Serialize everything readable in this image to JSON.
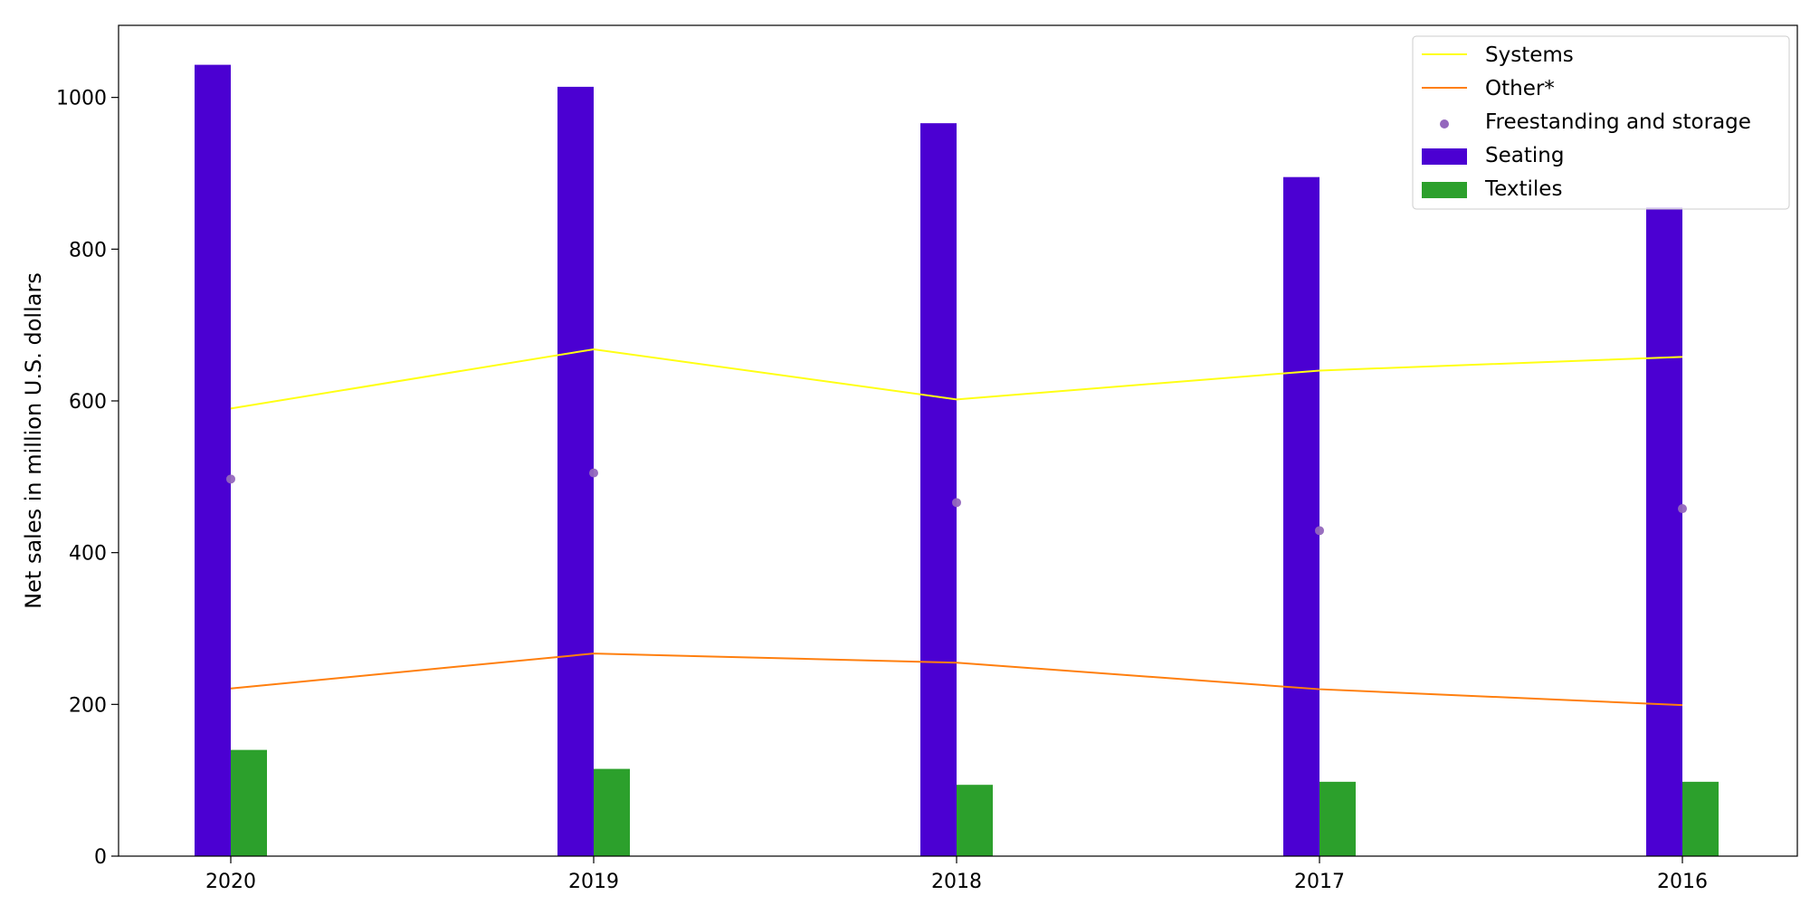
{
  "chart_data": {
    "type": "bar",
    "title": "",
    "xlabel": "",
    "ylabel": "Net sales in million U.S. dollars",
    "categories": [
      "2020",
      "2019",
      "2018",
      "2017",
      "2016"
    ],
    "ylim": [
      0,
      1095
    ],
    "yticks": [
      0,
      200,
      400,
      600,
      800,
      1000
    ],
    "grid": false,
    "legend_position": "top-right",
    "series": [
      {
        "name": "Systems",
        "kind": "line",
        "color": "#ffff14",
        "values": [
          590,
          668,
          602,
          640,
          658
        ]
      },
      {
        "name": "Other*",
        "kind": "line",
        "color": "#ff7f0e",
        "values": [
          221,
          267,
          255,
          220,
          199
        ]
      },
      {
        "name": "Freestanding and storage",
        "kind": "scatter",
        "color": "#9467bd",
        "values": [
          497,
          505,
          466,
          429,
          458
        ]
      },
      {
        "name": "Seating",
        "kind": "bar",
        "color": "#4b00d2",
        "values": [
          1043,
          1014,
          966,
          895,
          855
        ]
      },
      {
        "name": "Textiles",
        "kind": "bar",
        "color": "#2ca02c",
        "values": [
          140,
          115,
          94,
          98,
          98
        ]
      }
    ]
  }
}
